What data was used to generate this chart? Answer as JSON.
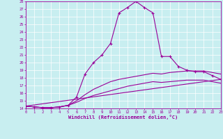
{
  "xlabel": "Windchill (Refroidissement éolien,°C)",
  "xlim": [
    0,
    23
  ],
  "ylim": [
    14,
    28
  ],
  "yticks": [
    14,
    15,
    16,
    17,
    18,
    19,
    20,
    21,
    22,
    23,
    24,
    25,
    26,
    27,
    28
  ],
  "xticks": [
    0,
    1,
    2,
    3,
    4,
    5,
    6,
    7,
    8,
    9,
    10,
    11,
    12,
    13,
    14,
    15,
    16,
    17,
    18,
    19,
    20,
    21,
    22,
    23
  ],
  "bg_color": "#c8eef0",
  "line_color": "#990099",
  "grid_color": "#ffffff",
  "series": [
    {
      "x": [
        0,
        1,
        2,
        3,
        4,
        5,
        6,
        7,
        8,
        9,
        10,
        11,
        12,
        13,
        14,
        15,
        16,
        17,
        18,
        19,
        20,
        21,
        22,
        23
      ],
      "y": [
        14.3,
        14.2,
        14.1,
        14.1,
        14.2,
        14.4,
        15.5,
        18.5,
        20.0,
        21.0,
        22.5,
        26.5,
        27.2,
        28.0,
        27.2,
        26.5,
        20.8,
        20.8,
        19.5,
        19.0,
        18.8,
        18.8,
        18.3,
        17.8
      ],
      "marker": true
    },
    {
      "x": [
        0,
        1,
        2,
        3,
        4,
        5,
        6,
        7,
        8,
        9,
        10,
        11,
        12,
        13,
        14,
        15,
        16,
        17,
        18,
        19,
        20,
        21,
        22,
        23
      ],
      "y": [
        14.3,
        14.2,
        14.1,
        14.1,
        14.2,
        14.4,
        15.0,
        15.8,
        16.5,
        17.0,
        17.5,
        17.8,
        18.0,
        18.2,
        18.4,
        18.6,
        18.5,
        18.7,
        18.8,
        18.9,
        18.9,
        18.9,
        18.7,
        18.5
      ],
      "marker": false
    },
    {
      "x": [
        0,
        1,
        2,
        3,
        4,
        5,
        6,
        7,
        8,
        9,
        10,
        11,
        12,
        13,
        14,
        15,
        16,
        17,
        18,
        19,
        20,
        21,
        22,
        23
      ],
      "y": [
        14.3,
        14.2,
        14.1,
        14.1,
        14.2,
        14.4,
        14.8,
        15.3,
        15.7,
        16.0,
        16.3,
        16.6,
        16.9,
        17.1,
        17.3,
        17.5,
        17.4,
        17.5,
        17.6,
        17.7,
        17.7,
        17.7,
        17.5,
        17.3
      ],
      "marker": false
    },
    {
      "x": [
        0,
        23
      ],
      "y": [
        14.3,
        17.8
      ],
      "marker": false
    }
  ]
}
